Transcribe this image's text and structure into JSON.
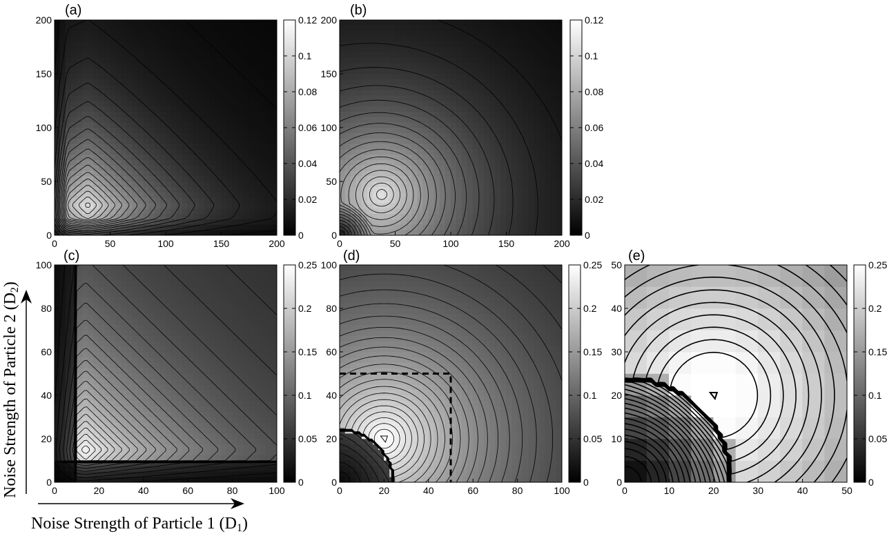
{
  "axes_labels": {
    "y": "Noise Strength of Particle 2 (D",
    "y_sub": "2",
    "y_close": ")",
    "x": "Noise Strength of Particle 1 (D",
    "x_sub": "1",
    "x_close": ")"
  },
  "chart_data": [
    {
      "type": "heatmap",
      "panel_label": "(a)",
      "xlim": [
        0,
        200
      ],
      "ylim": [
        0,
        200
      ],
      "xticks": [
        0,
        50,
        100,
        150,
        200
      ],
      "yticks": [
        0,
        50,
        100,
        150,
        200
      ],
      "colorbar": {
        "range": [
          0,
          0.12
        ],
        "ticks": [
          "0",
          "0.02",
          "0.04",
          "0.06",
          "0.08",
          "0.1",
          "0.12"
        ]
      },
      "peak": {
        "x": 30,
        "y": 28,
        "value": 0.1
      },
      "contours": "yes"
    },
    {
      "type": "heatmap",
      "panel_label": "(b)",
      "xlim": [
        0,
        200
      ],
      "ylim": [
        0,
        200
      ],
      "xticks": [
        0,
        50,
        100,
        150,
        200
      ],
      "yticks": [
        0,
        50,
        100,
        150,
        200
      ],
      "colorbar": {
        "range": [
          0,
          0.12
        ],
        "ticks": [
          "0",
          "0.02",
          "0.04",
          "0.06",
          "0.08",
          "0.1",
          "0.12"
        ]
      },
      "peak": {
        "x": 38,
        "y": 38,
        "value": 0.1
      },
      "contours": "yes"
    },
    {
      "type": "heatmap",
      "panel_label": "(c)",
      "xlim": [
        0,
        100
      ],
      "ylim": [
        0,
        100
      ],
      "xticks": [
        0,
        20,
        40,
        60,
        80,
        100
      ],
      "yticks": [
        0,
        20,
        40,
        60,
        80,
        100
      ],
      "colorbar": {
        "range": [
          0,
          0.25
        ],
        "ticks": [
          "0",
          "0.05",
          "0.1",
          "0.15",
          "0.2",
          "0.25"
        ]
      },
      "peak": {
        "x": 14,
        "y": 15,
        "value": 0.2
      },
      "contours": "yes"
    },
    {
      "type": "heatmap",
      "panel_label": "(d)",
      "xlim": [
        0,
        100
      ],
      "ylim": [
        0,
        100
      ],
      "xticks": [
        0,
        20,
        40,
        60,
        80,
        100
      ],
      "yticks": [
        0,
        20,
        40,
        60,
        80,
        100
      ],
      "colorbar": {
        "range": [
          0,
          0.25
        ],
        "ticks": [
          "0",
          "0.05",
          "0.1",
          "0.15",
          "0.2",
          "0.25"
        ]
      },
      "peak": {
        "x": 20,
        "y": 20,
        "value": 0.23
      },
      "dashed_box": {
        "x": [
          0,
          50
        ],
        "y": [
          0,
          50
        ]
      },
      "contours": "yes"
    },
    {
      "type": "heatmap",
      "panel_label": "(e)",
      "xlim": [
        0,
        50
      ],
      "ylim": [
        0,
        50
      ],
      "xticks": [
        0,
        10,
        20,
        30,
        40,
        50
      ],
      "yticks": [
        0,
        10,
        20,
        30,
        40,
        50
      ],
      "colorbar": {
        "range": [
          0,
          0.25
        ],
        "ticks": [
          "0",
          "0.05",
          "0.1",
          "0.15",
          "0.2",
          "0.25"
        ]
      },
      "grid_step": 5,
      "peak": {
        "x": 20,
        "y": 20,
        "value": 0.23
      },
      "contours": "yes"
    }
  ]
}
